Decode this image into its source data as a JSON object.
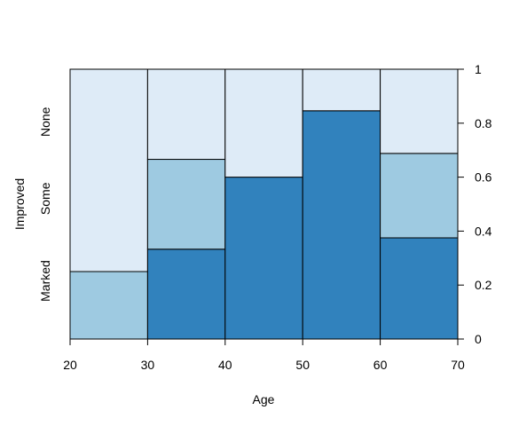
{
  "chart_data": {
    "type": "spineplot",
    "xlabel": "Age",
    "ylabel": "Improved",
    "x_breaks": [
      20,
      30,
      40,
      50,
      60,
      70
    ],
    "x_tick_labels": [
      "20",
      "30",
      "40",
      "50",
      "60",
      "70"
    ],
    "y_right_ticks": [
      "0",
      "0.2",
      "0.4",
      "0.6",
      "0.8",
      "1"
    ],
    "categories": [
      "Marked",
      "Some",
      "None"
    ],
    "colors": {
      "None": "#deebf7",
      "Some": "#9ecae1",
      "Marked": "#3182bd"
    },
    "bins": [
      {
        "range": [
          20,
          30
        ],
        "Marked": 0.0,
        "Some": 0.25,
        "None": 0.75
      },
      {
        "range": [
          30,
          40
        ],
        "Marked": 0.333,
        "Some": 0.333,
        "None": 0.334
      },
      {
        "range": [
          40,
          50
        ],
        "Marked": 0.6,
        "Some": 0.0,
        "None": 0.4
      },
      {
        "range": [
          50,
          60
        ],
        "Marked": 0.846,
        "Some": 0.0,
        "None": 0.154
      },
      {
        "range": [
          60,
          70
        ],
        "Marked": 0.375,
        "Some": 0.313,
        "None": 0.312
      }
    ]
  }
}
